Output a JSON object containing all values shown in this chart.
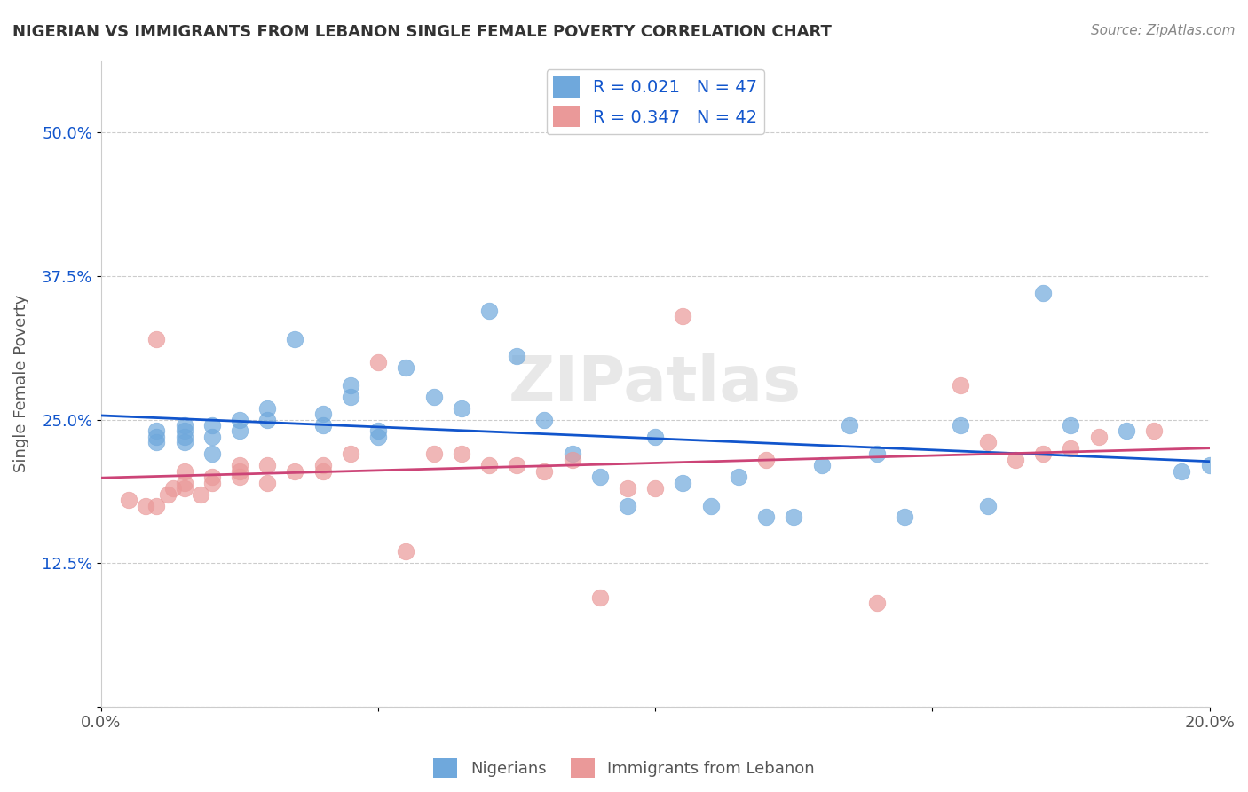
{
  "title": "NIGERIAN VS IMMIGRANTS FROM LEBANON SINGLE FEMALE POVERTY CORRELATION CHART",
  "source": "Source: ZipAtlas.com",
  "xlabel": "",
  "ylabel": "Single Female Poverty",
  "watermark": "ZIPatlas",
  "xmin": 0.0,
  "xmax": 0.2,
  "ymin": 0.0,
  "ymax": 0.5625,
  "yticks": [
    0.0,
    0.125,
    0.25,
    0.375,
    0.5
  ],
  "ytick_labels": [
    "",
    "12.5%",
    "25.0%",
    "37.5%",
    "50.0%"
  ],
  "xticks": [
    0.0,
    0.05,
    0.1,
    0.15,
    0.2
  ],
  "xtick_labels": [
    "0.0%",
    "",
    "",
    "",
    "20.0%"
  ],
  "legend_R_blue": "R = 0.021",
  "legend_N_blue": "N = 47",
  "legend_R_pink": "R = 0.347",
  "legend_N_pink": "N = 42",
  "legend_label_blue": "Nigerians",
  "legend_label_pink": "Immigrants from Lebanon",
  "blue_color": "#6fa8dc",
  "pink_color": "#ea9999",
  "trend_blue_color": "#1155cc",
  "trend_pink_color": "#cc4477",
  "blue_x": [
    0.01,
    0.01,
    0.01,
    0.015,
    0.015,
    0.015,
    0.015,
    0.02,
    0.02,
    0.02,
    0.025,
    0.025,
    0.03,
    0.03,
    0.035,
    0.04,
    0.04,
    0.045,
    0.045,
    0.05,
    0.05,
    0.055,
    0.06,
    0.065,
    0.07,
    0.075,
    0.08,
    0.085,
    0.09,
    0.095,
    0.1,
    0.105,
    0.11,
    0.115,
    0.12,
    0.125,
    0.13,
    0.135,
    0.14,
    0.145,
    0.155,
    0.16,
    0.17,
    0.175,
    0.185,
    0.195,
    0.2
  ],
  "blue_y": [
    0.24,
    0.235,
    0.23,
    0.245,
    0.24,
    0.235,
    0.23,
    0.245,
    0.235,
    0.22,
    0.25,
    0.24,
    0.26,
    0.25,
    0.32,
    0.255,
    0.245,
    0.28,
    0.27,
    0.24,
    0.235,
    0.295,
    0.27,
    0.26,
    0.345,
    0.305,
    0.25,
    0.22,
    0.2,
    0.175,
    0.235,
    0.195,
    0.175,
    0.2,
    0.165,
    0.165,
    0.21,
    0.245,
    0.22,
    0.165,
    0.245,
    0.175,
    0.36,
    0.245,
    0.24,
    0.205,
    0.21
  ],
  "pink_x": [
    0.005,
    0.008,
    0.01,
    0.01,
    0.012,
    0.013,
    0.015,
    0.015,
    0.015,
    0.018,
    0.02,
    0.02,
    0.025,
    0.025,
    0.025,
    0.03,
    0.03,
    0.035,
    0.04,
    0.04,
    0.045,
    0.05,
    0.055,
    0.06,
    0.065,
    0.07,
    0.075,
    0.08,
    0.085,
    0.09,
    0.095,
    0.1,
    0.105,
    0.12,
    0.14,
    0.155,
    0.16,
    0.165,
    0.17,
    0.175,
    0.18,
    0.19
  ],
  "pink_y": [
    0.18,
    0.175,
    0.32,
    0.175,
    0.185,
    0.19,
    0.195,
    0.205,
    0.19,
    0.185,
    0.195,
    0.2,
    0.21,
    0.205,
    0.2,
    0.21,
    0.195,
    0.205,
    0.205,
    0.21,
    0.22,
    0.3,
    0.135,
    0.22,
    0.22,
    0.21,
    0.21,
    0.205,
    0.215,
    0.095,
    0.19,
    0.19,
    0.34,
    0.215,
    0.09,
    0.28,
    0.23,
    0.215,
    0.22,
    0.225,
    0.235,
    0.24
  ],
  "background_color": "#ffffff",
  "grid_color": "#cccccc"
}
